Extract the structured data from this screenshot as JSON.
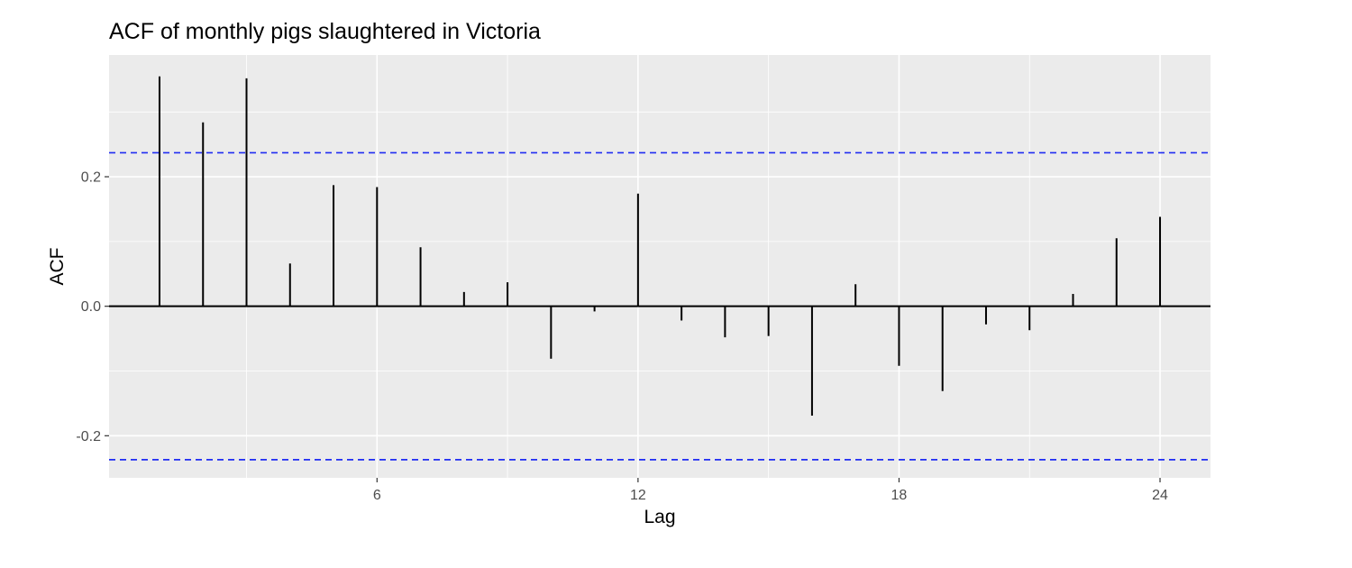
{
  "chart_data": {
    "type": "bar",
    "title": "ACF of monthly pigs slaughtered in Victoria",
    "xlabel": "Lag",
    "ylabel": "ACF",
    "x": [
      1,
      2,
      3,
      4,
      5,
      6,
      7,
      8,
      9,
      10,
      11,
      12,
      13,
      14,
      15,
      16,
      17,
      18,
      19,
      20,
      21,
      22,
      23,
      24
    ],
    "values": [
      0.355,
      0.284,
      0.352,
      0.066,
      0.187,
      0.184,
      0.091,
      0.022,
      0.037,
      -0.081,
      -0.008,
      0.174,
      -0.022,
      -0.048,
      -0.046,
      -0.169,
      0.034,
      -0.092,
      -0.131,
      -0.028,
      -0.037,
      0.019,
      0.105,
      0.138
    ],
    "confidence_bounds": [
      -0.237,
      0.237
    ],
    "x_ticks": [
      6,
      12,
      18,
      24
    ],
    "x_tick_labels": [
      "6",
      "12",
      "18",
      "24"
    ],
    "y_ticks": [
      -0.2,
      0.0,
      0.2
    ],
    "y_tick_labels": [
      "-0.2",
      "0.0",
      "0.2"
    ],
    "xlim": [
      -0.16,
      25.16
    ],
    "ylim": [
      -0.265,
      0.388
    ],
    "grid": true,
    "colors": {
      "panel_background": "#ebebeb",
      "grid_major": "#ffffff",
      "spikes": "#000000",
      "confidence_line": "#1f2cf2",
      "tick_text": "#4d4d4d"
    }
  }
}
